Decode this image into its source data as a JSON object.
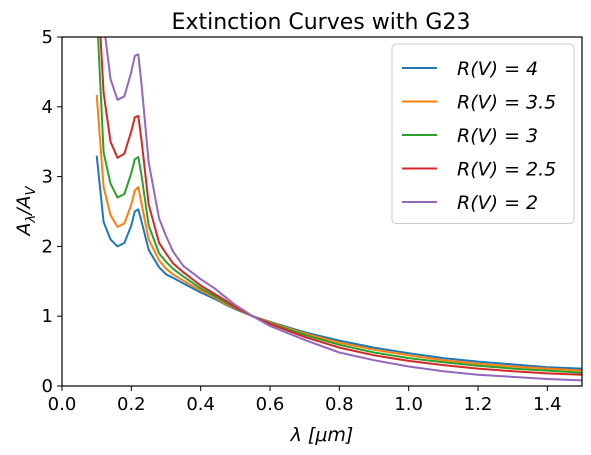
{
  "chart_data": {
    "type": "line",
    "title": "Extinction Curves with G23",
    "xlabel": "λ [μm]",
    "ylabel": "A_λ/A_V",
    "xlim": [
      0.0,
      1.5
    ],
    "ylim": [
      0,
      5
    ],
    "xticks": [
      "0.0",
      "0.2",
      "0.4",
      "0.6",
      "0.8",
      "1.0",
      "1.2",
      "1.4"
    ],
    "xtick_values": [
      0.0,
      0.2,
      0.4,
      0.6,
      0.8,
      1.0,
      1.2,
      1.4
    ],
    "yticks": [
      "0",
      "1",
      "2",
      "3",
      "4",
      "5"
    ],
    "ytick_values": [
      0,
      1,
      2,
      3,
      4,
      5
    ],
    "grid": false,
    "legend_position": "top-right",
    "x": [
      0.1,
      0.12,
      0.14,
      0.16,
      0.18,
      0.2,
      0.21,
      0.22,
      0.23,
      0.25,
      0.28,
      0.3,
      0.32,
      0.35,
      0.4,
      0.44,
      0.47,
      0.5,
      0.55,
      0.6,
      0.7,
      0.8,
      0.9,
      1.0,
      1.1,
      1.2,
      1.3,
      1.4,
      1.5
    ],
    "series": [
      {
        "name": "R(V) = 4",
        "color": "#1f77b4",
        "values": [
          3.3,
          2.35,
          2.1,
          2.0,
          2.05,
          2.3,
          2.5,
          2.53,
          2.35,
          1.95,
          1.7,
          1.6,
          1.55,
          1.47,
          1.34,
          1.25,
          1.17,
          1.1,
          1.0,
          0.92,
          0.77,
          0.65,
          0.55,
          0.47,
          0.4,
          0.35,
          0.31,
          0.27,
          0.25
        ]
      },
      {
        "name": "R(V) = 3.5",
        "color": "#ff7f0e",
        "values": [
          4.17,
          2.85,
          2.45,
          2.28,
          2.33,
          2.6,
          2.8,
          2.85,
          2.6,
          2.1,
          1.8,
          1.68,
          1.6,
          1.51,
          1.37,
          1.27,
          1.18,
          1.11,
          1.0,
          0.91,
          0.75,
          0.62,
          0.52,
          0.44,
          0.37,
          0.32,
          0.28,
          0.25,
          0.22
        ]
      },
      {
        "name": "R(V) = 3",
        "color": "#2ca02c",
        "values": [
          5.4,
          3.35,
          2.9,
          2.7,
          2.75,
          3.05,
          3.25,
          3.28,
          3.0,
          2.3,
          1.9,
          1.78,
          1.68,
          1.57,
          1.4,
          1.29,
          1.2,
          1.12,
          1.0,
          0.9,
          0.73,
          0.59,
          0.48,
          0.4,
          0.34,
          0.29,
          0.25,
          0.22,
          0.19
        ]
      },
      {
        "name": "R(V) = 2.5",
        "color": "#d62728",
        "values": [
          6.0,
          4.2,
          3.5,
          3.27,
          3.33,
          3.65,
          3.85,
          3.87,
          3.5,
          2.6,
          2.05,
          1.9,
          1.76,
          1.63,
          1.44,
          1.32,
          1.23,
          1.13,
          1.0,
          0.89,
          0.7,
          0.55,
          0.44,
          0.36,
          0.3,
          0.25,
          0.21,
          0.18,
          0.16
        ]
      },
      {
        "name": "R(V) = 2",
        "color": "#9467bd",
        "values": [
          6.5,
          5.2,
          4.4,
          4.1,
          4.15,
          4.5,
          4.73,
          4.75,
          4.3,
          3.2,
          2.4,
          2.15,
          1.93,
          1.72,
          1.53,
          1.4,
          1.28,
          1.16,
          1.0,
          0.86,
          0.66,
          0.48,
          0.37,
          0.28,
          0.21,
          0.16,
          0.13,
          0.1,
          0.08
        ]
      }
    ]
  }
}
